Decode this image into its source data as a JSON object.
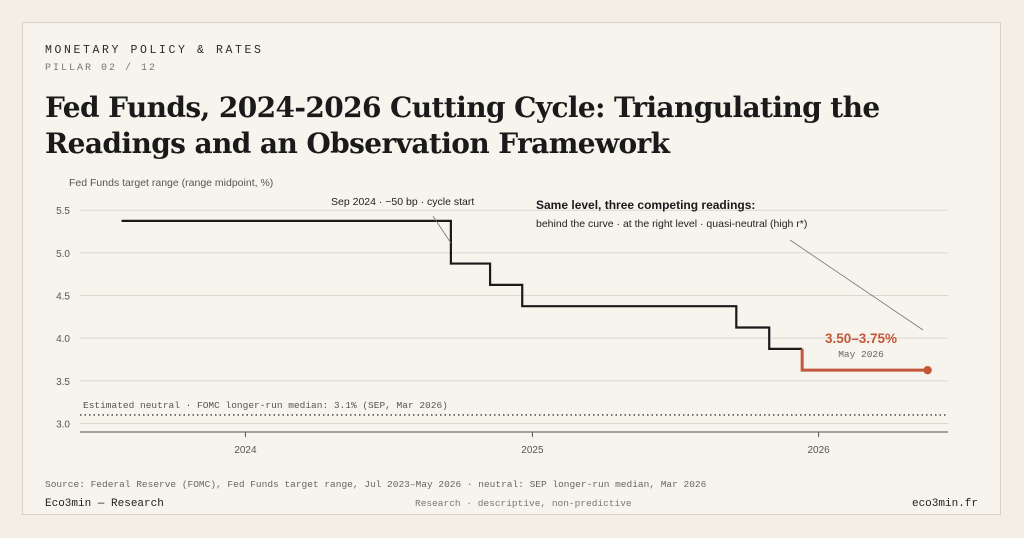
{
  "header": {
    "kicker": "MONETARY POLICY & RATES",
    "pillar": "PILLAR 02 / 12",
    "title": "Fed Funds, 2024-2026 Cutting Cycle: Triangulating the Readings and an Observation Framework"
  },
  "footer": {
    "source": "Source: Federal Reserve (FOMC), Fed Funds target range, Jul 2023–May 2026 · neutral: SEP longer-run median, Mar 2026",
    "brand": "Eco3min — Research",
    "note": "Research · descriptive, non-predictive",
    "site": "eco3min.fr"
  },
  "chart_data": {
    "type": "line",
    "ylabel": "Fed Funds target range (range midpoint, %)",
    "xlabel": "",
    "ylim": [
      2.9,
      5.62
    ],
    "xlim": [
      "2023-06-04",
      "2026-06-15"
    ],
    "y_ticks": [
      3.0,
      3.5,
      4.0,
      4.5,
      5.0,
      5.5
    ],
    "y_tick_labels": [
      "3.0",
      "3.5",
      "4.0",
      "4.5",
      "5.0",
      "5.5"
    ],
    "x_ticks": [
      "2024-01-01",
      "2025-01-01",
      "2026-01-01"
    ],
    "x_tick_labels": [
      "2024",
      "2025",
      "2026"
    ],
    "grid": "horizontal",
    "step_series": {
      "points": [
        {
          "date": "2023-07-27",
          "value": 5.375
        },
        {
          "date": "2024-09-19",
          "value": 4.875
        },
        {
          "date": "2024-11-08",
          "value": 4.625
        },
        {
          "date": "2024-12-19",
          "value": 4.375
        },
        {
          "date": "2025-09-18",
          "value": 4.125
        },
        {
          "date": "2025-10-30",
          "value": 3.875
        },
        {
          "date": "2025-12-11",
          "value": 3.625
        },
        {
          "date": "2026-05-20",
          "value": 3.625
        }
      ],
      "highlight_from": "2025-12-11",
      "color": "#1a1a1a",
      "highlight_color": "#c4563a"
    },
    "neutral": {
      "value": 3.1,
      "label": "Estimated neutral · FOMC longer-run median: 3.1% (SEP, Mar 2026)"
    },
    "annotations": {
      "cycle_start": "Sep 2024 · −50 bp · cycle start",
      "readings_title": "Same level, three competing readings:",
      "readings_sub": "behind the curve · at the right level · quasi-neutral (high r*)",
      "current_value": "3.50–3.75%",
      "current_date": "May 2026"
    },
    "colors": {
      "grid": "#ddd7cc",
      "axis": "#555555",
      "accent": "#c4563a"
    }
  }
}
